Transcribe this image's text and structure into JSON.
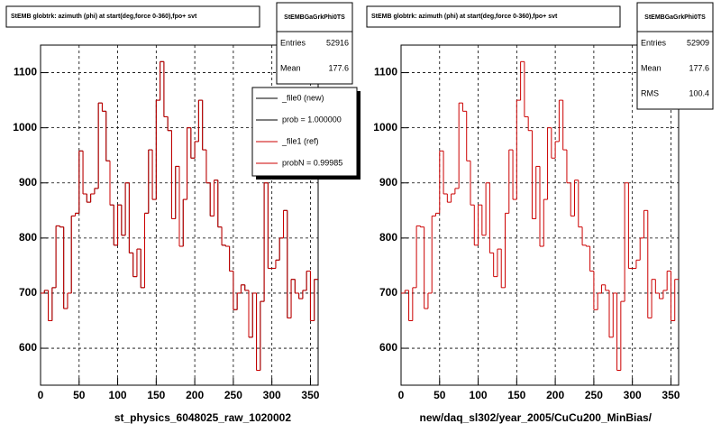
{
  "chart_data": [
    {
      "type": "histogram",
      "title": "StEMB globtrk: azimuth (phi) at start(deg,force 0-360),fpo+ svt",
      "xlabel": "st_physics_6048025_raw_1020002",
      "bins": [
        0,
        5,
        10,
        15,
        20,
        25,
        30,
        35,
        40,
        45,
        50,
        55,
        60,
        65,
        70,
        75,
        80,
        85,
        90,
        95,
        100,
        105,
        110,
        115,
        120,
        125,
        130,
        135,
        140,
        145,
        150,
        155,
        160,
        165,
        170,
        175,
        180,
        185,
        190,
        195,
        200,
        205,
        210,
        215,
        220,
        225,
        230,
        235,
        240,
        245,
        250,
        255,
        260,
        265,
        270,
        275,
        280,
        285,
        290,
        295,
        300,
        305,
        310,
        315,
        320,
        325,
        330,
        335,
        340,
        345,
        350,
        355,
        360
      ],
      "series": [
        {
          "name": "_file0 (new)",
          "color": "#000000",
          "values": [
            700,
            705,
            650,
            710,
            822,
            820,
            672,
            700,
            840,
            845,
            958,
            880,
            865,
            880,
            890,
            1045,
            1030,
            940,
            860,
            787,
            860,
            805,
            900,
            773,
            730,
            780,
            710,
            845,
            960,
            870,
            1050,
            1120,
            1020,
            995,
            835,
            930,
            785,
            870,
            1000,
            945,
            975,
            1050,
            960,
            900,
            840,
            905,
            820,
            787,
            785,
            740,
            670,
            700,
            715,
            705,
            620,
            700,
            560,
            685,
            900,
            745,
            745,
            760,
            800,
            850,
            655,
            725,
            700,
            690,
            705,
            740,
            650,
            725
          ]
        },
        {
          "name": "_file1 (ref)",
          "color": "#cc0000",
          "values": [
            700,
            705,
            650,
            710,
            822,
            820,
            672,
            700,
            840,
            845,
            958,
            880,
            865,
            880,
            890,
            1045,
            1030,
            940,
            860,
            787,
            860,
            805,
            900,
            773,
            730,
            780,
            710,
            845,
            960,
            870,
            1050,
            1120,
            1020,
            995,
            835,
            930,
            785,
            870,
            1000,
            945,
            975,
            1050,
            960,
            900,
            840,
            905,
            820,
            787,
            785,
            740,
            670,
            700,
            715,
            705,
            620,
            700,
            560,
            685,
            900,
            745,
            745,
            760,
            800,
            850,
            655,
            725,
            700,
            690,
            705,
            740,
            650,
            725
          ]
        }
      ],
      "legend_notes": [
        "prob = 1.000000",
        "probN = 0.99985"
      ],
      "xlim": [
        0,
        360
      ],
      "ylim": [
        533,
        1150
      ],
      "xticks": [
        0,
        50,
        100,
        150,
        200,
        250,
        300,
        350
      ],
      "yticks": [
        600,
        700,
        800,
        900,
        1000,
        1100
      ],
      "grid": true,
      "stats": {
        "name": "StEMBGaGrkPhi0TS",
        "rows": [
          {
            "label": "Entries",
            "value": 52916
          },
          {
            "label": "Mean",
            "value": 177.6
          }
        ]
      }
    },
    {
      "type": "histogram",
      "title": "StEMB globtrk: azimuth (phi) at start(deg,force 0-360),fpo+ svt",
      "xlabel": "new/daq_sl302/year_2005/CuCu200_MinBias/",
      "bins": [
        0,
        5,
        10,
        15,
        20,
        25,
        30,
        35,
        40,
        45,
        50,
        55,
        60,
        65,
        70,
        75,
        80,
        85,
        90,
        95,
        100,
        105,
        110,
        115,
        120,
        125,
        130,
        135,
        140,
        145,
        150,
        155,
        160,
        165,
        170,
        175,
        180,
        185,
        190,
        195,
        200,
        205,
        210,
        215,
        220,
        225,
        230,
        235,
        240,
        245,
        250,
        255,
        260,
        265,
        270,
        275,
        280,
        285,
        290,
        295,
        300,
        305,
        310,
        315,
        320,
        325,
        330,
        335,
        340,
        345,
        350,
        355,
        360
      ],
      "series": [
        {
          "name": "_file1 (ref)",
          "color": "#cc0000",
          "values": [
            700,
            705,
            650,
            710,
            822,
            820,
            672,
            700,
            840,
            845,
            958,
            880,
            865,
            880,
            890,
            1045,
            1030,
            940,
            860,
            787,
            860,
            805,
            900,
            773,
            730,
            780,
            710,
            845,
            960,
            870,
            1050,
            1120,
            1020,
            995,
            835,
            930,
            785,
            870,
            1000,
            945,
            975,
            1050,
            960,
            900,
            840,
            905,
            820,
            787,
            785,
            740,
            670,
            700,
            715,
            705,
            620,
            700,
            560,
            685,
            900,
            745,
            745,
            760,
            800,
            850,
            655,
            725,
            700,
            690,
            705,
            740,
            650,
            725
          ]
        }
      ],
      "xlim": [
        0,
        360
      ],
      "ylim": [
        533,
        1150
      ],
      "xticks": [
        0,
        50,
        100,
        150,
        200,
        250,
        300,
        350
      ],
      "yticks": [
        600,
        700,
        800,
        900,
        1000,
        1100
      ],
      "grid": true,
      "stats": {
        "name": "StEMBGaGrkPhi0TS",
        "rows": [
          {
            "label": "Entries",
            "value": 52909
          },
          {
            "label": "Mean",
            "value": 177.6
          },
          {
            "label": "RMS",
            "value": 100.4
          }
        ]
      }
    }
  ]
}
